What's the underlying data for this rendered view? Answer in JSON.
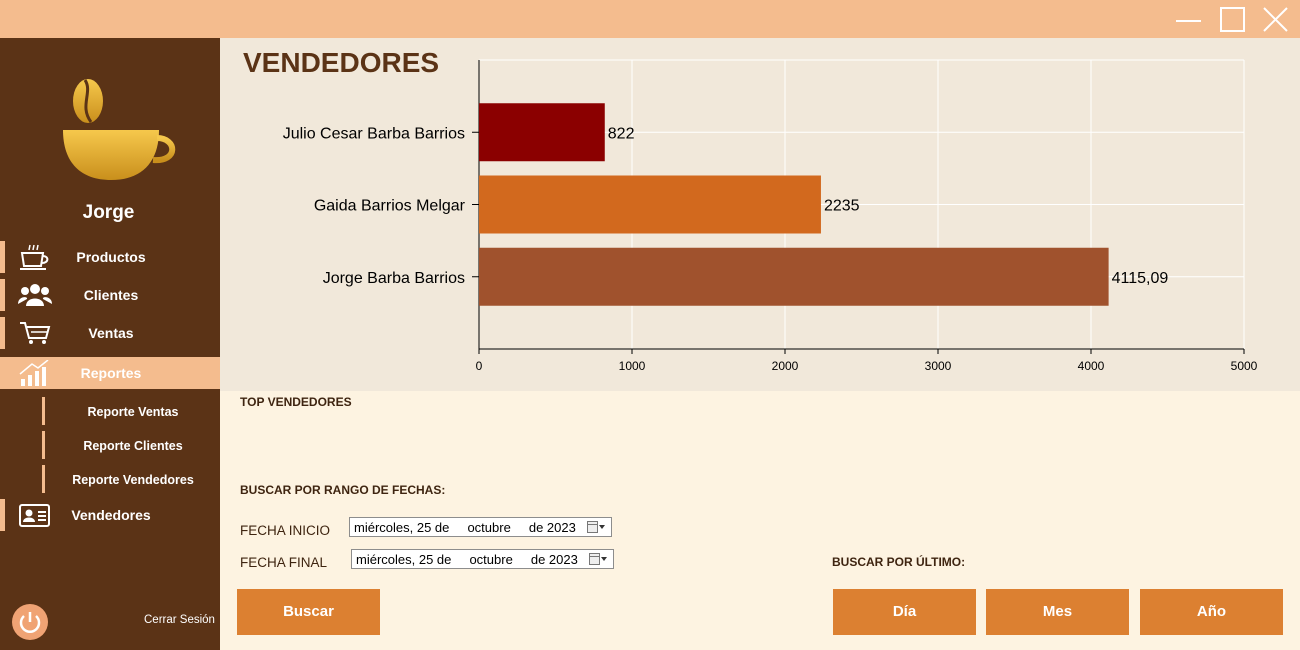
{
  "window": {
    "buttons": {
      "minimize": "minimize",
      "maximize": "maximize",
      "close": "close"
    }
  },
  "sidebar": {
    "username": "Jorge",
    "items": [
      {
        "label": "Productos",
        "icon": "coffee-cup-icon"
      },
      {
        "label": "Clientes",
        "icon": "users-icon"
      },
      {
        "label": "Ventas",
        "icon": "shopping-cart-icon"
      },
      {
        "label": "Reportes",
        "icon": "bar-chart-icon",
        "active": true
      },
      {
        "label": "Vendedores",
        "icon": "id-card-icon"
      }
    ],
    "subitems": [
      {
        "label": "Reporte Ventas"
      },
      {
        "label": "Reporte Clientes"
      },
      {
        "label": "Reporte Vendedores"
      }
    ],
    "logout_label": "Cerrar Sesión",
    "logout_icon": "power-icon"
  },
  "main": {
    "title": "VENDEDORES",
    "top_label": "TOP VENDEDORES",
    "range_label": "BUSCAR POR RANGO DE FECHAS:",
    "fecha_inicio_label": "FECHA INICIO",
    "fecha_inicio_value": "miércoles, 25 de     octubre     de 2023",
    "fecha_final_label": "FECHA FINAL",
    "fecha_final_value": "miércoles, 25 de     octubre     de 2023",
    "buscar_button": "Buscar",
    "last_label": "BUSCAR POR ÚLTIMO:",
    "dia_button": "Día",
    "mes_button": "Mes",
    "ano_button": "Año"
  },
  "colors": {
    "titlebar": "#f4bc8e",
    "sidebar": "#5b3316",
    "accent": "#dc8031",
    "chart_bg": "#f1e8da",
    "lower_bg": "#fdf3e1"
  },
  "chart_data": {
    "type": "bar",
    "orientation": "horizontal",
    "categories": [
      "Julio Cesar Barba Barrios",
      "Gaida Barrios Melgar",
      "Jorge Barba Barrios"
    ],
    "values": [
      822,
      2235,
      4115.09
    ],
    "value_labels": [
      "822",
      "2235",
      "4115,09"
    ],
    "colors": [
      "#8b0000",
      "#d2691e",
      "#a0522d"
    ],
    "xlim": [
      0,
      5000
    ],
    "xticks": [
      "0",
      "1000",
      "2000",
      "3000",
      "4000",
      "5000"
    ],
    "grid": true,
    "title": "",
    "xlabel": "",
    "ylabel": ""
  }
}
